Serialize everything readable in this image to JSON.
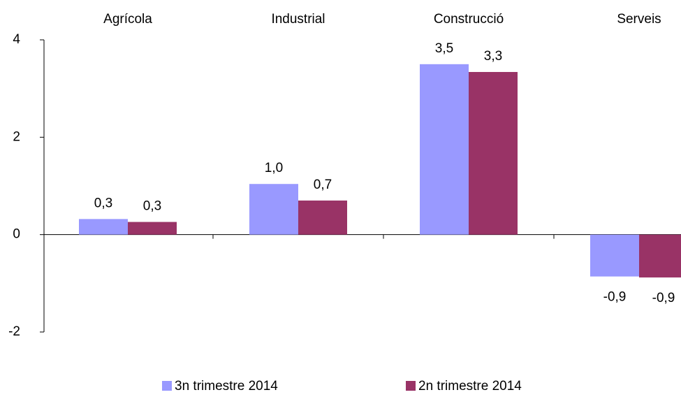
{
  "chart_data": {
    "type": "bar",
    "categories": [
      "Agrícola",
      "Industrial",
      "Construcció",
      "Serveis"
    ],
    "series": [
      {
        "name": "3n trimestre 2014",
        "color": "#9999ff",
        "values": [
          0.32,
          1.04,
          3.5,
          -0.86
        ],
        "value_labels": [
          "0,3",
          "1,0",
          "3,5",
          "-0,9"
        ]
      },
      {
        "name": "2n trimestre 2014",
        "color": "#993366",
        "values": [
          0.26,
          0.7,
          3.34,
          -0.88
        ],
        "value_labels": [
          "0,3",
          "0,7",
          "3,3",
          "-0,9"
        ]
      }
    ],
    "ylim": [
      -2,
      4
    ],
    "yticks": [
      -2,
      0,
      2,
      4
    ],
    "grid": false
  }
}
